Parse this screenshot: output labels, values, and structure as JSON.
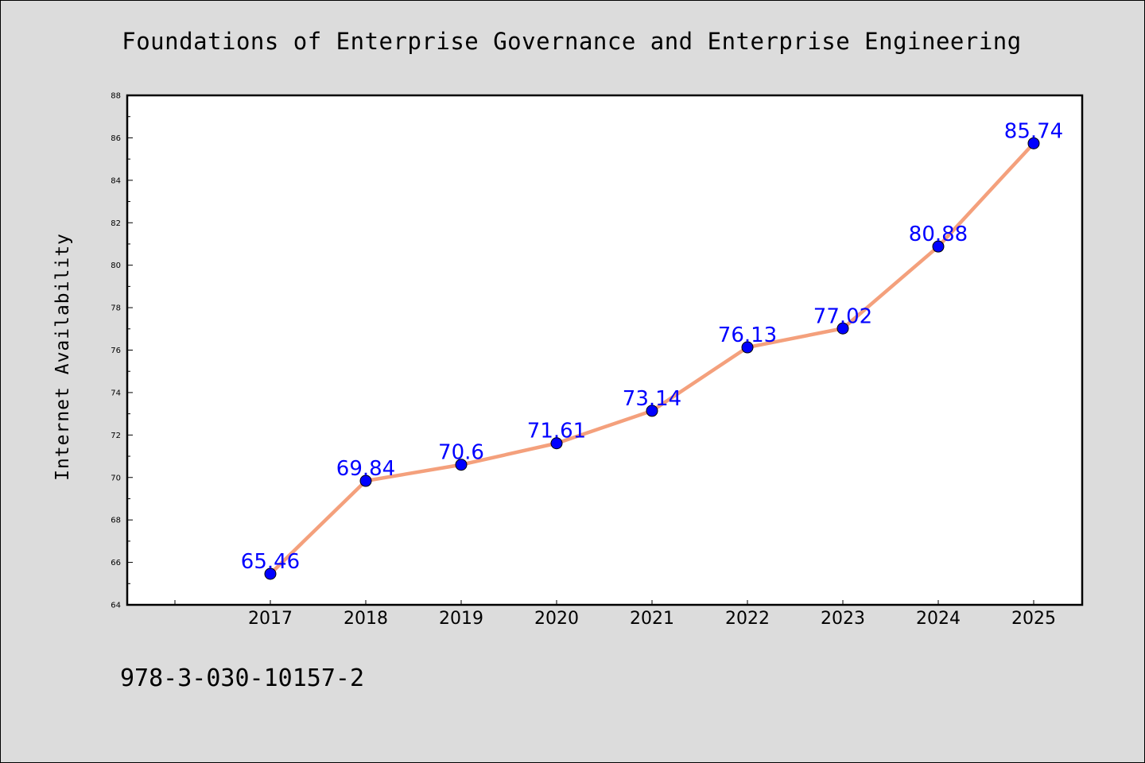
{
  "chart_data": {
    "type": "line",
    "title": "Foundations of Enterprise Governance and Enterprise Engineering",
    "xlabel": "",
    "ylabel": "Internet Availability",
    "categories": [
      "2017",
      "2018",
      "2019",
      "2020",
      "2021",
      "2022",
      "2023",
      "2024",
      "2025"
    ],
    "series": [
      {
        "values": [
          65.46,
          69.84,
          70.6,
          71.61,
          73.14,
          76.13,
          77.02,
          80.88,
          85.74
        ]
      }
    ],
    "data_labels": [
      "65.46",
      "69.84",
      "70.6",
      "71.61",
      "73.14",
      "76.13",
      "77.02",
      "80.88",
      "85.74"
    ],
    "ylim": [
      64,
      88
    ],
    "y_ticks": [
      "64",
      "66",
      "68",
      "70",
      "72",
      "74",
      "76",
      "78",
      "80",
      "82",
      "84",
      "86",
      "88"
    ],
    "grid": false,
    "colors": {
      "line": "#f4a07c",
      "marker": "#0000ff",
      "data_label": "#0000ff",
      "background": "#dcdcdc",
      "plot_background": "#ffffff"
    }
  },
  "footer": {
    "identifier": "978-3-030-10157-2"
  }
}
